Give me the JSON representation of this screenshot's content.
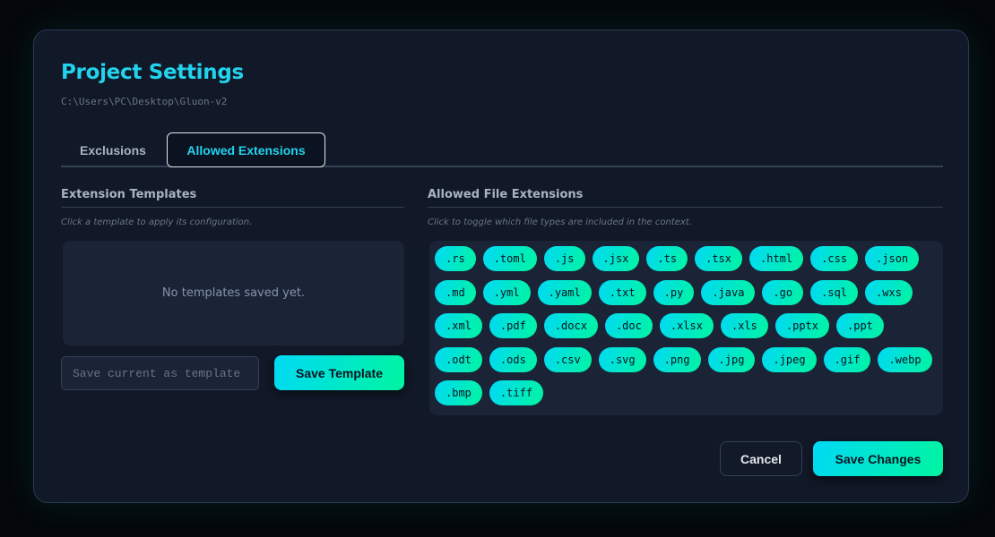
{
  "modal": {
    "title": "Project Settings",
    "path": "C:\\Users\\PC\\Desktop\\Gluon-v2",
    "tabs": [
      {
        "label": "Exclusions",
        "active": false
      },
      {
        "label": "Allowed Extensions",
        "active": true
      }
    ],
    "templates": {
      "heading": "Extension Templates",
      "hint": "Click a template to apply its configuration.",
      "empty_text": "No templates saved yet.",
      "input_placeholder": "Save current as template",
      "input_value": "",
      "save_label": "Save Template"
    },
    "extensions": {
      "heading": "Allowed File Extensions",
      "hint": "Click to toggle which file types are included in the context.",
      "items": [
        ".rs",
        ".toml",
        ".js",
        ".jsx",
        ".ts",
        ".tsx",
        ".html",
        ".css",
        ".json",
        ".md",
        ".yml",
        ".yaml",
        ".txt",
        ".py",
        ".java",
        ".go",
        ".sql",
        ".wxs",
        ".xml",
        ".pdf",
        ".docx",
        ".doc",
        ".xlsx",
        ".xls",
        ".pptx",
        ".ppt",
        ".odt",
        ".ods",
        ".csv",
        ".svg",
        ".png",
        ".jpg",
        ".jpeg",
        ".gif",
        ".webp",
        ".bmp",
        ".tiff"
      ]
    },
    "cancel_label": "Cancel",
    "save_changes_label": "Save Changes"
  },
  "colors": {
    "accent": "#22d3ee",
    "gradient_start": "#00d9f5",
    "gradient_end": "#00f5a0",
    "panel": "#111827"
  }
}
